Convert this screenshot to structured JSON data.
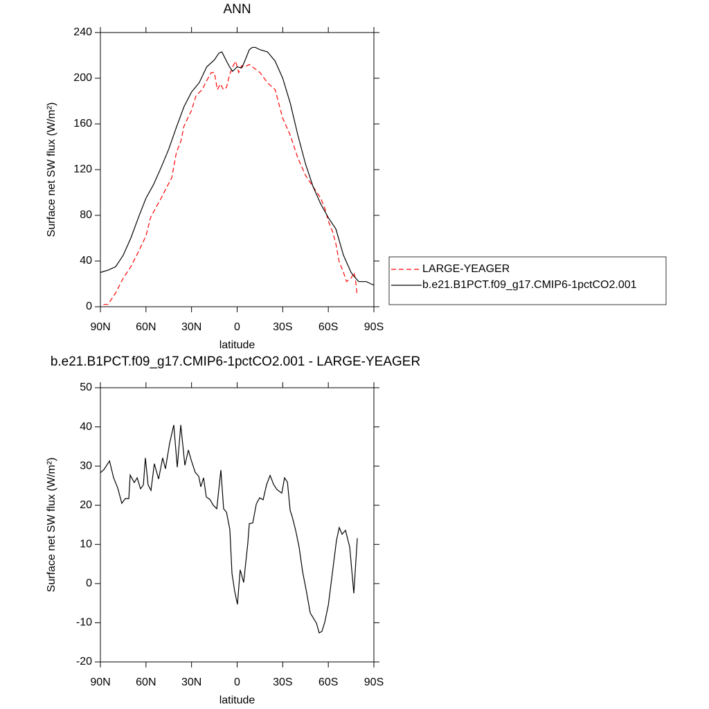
{
  "chart_data": [
    {
      "type": "line",
      "title": "ANN",
      "xlabel": "latitude",
      "ylabel": "Surface net SW flux (W/m²)",
      "xlim": [
        90,
        -90
      ],
      "ylim": [
        0,
        240
      ],
      "xticks": [
        {
          "value": 90,
          "label": "90N"
        },
        {
          "value": 60,
          "label": "60N"
        },
        {
          "value": 30,
          "label": "30N"
        },
        0,
        {
          "value": -30,
          "label": "30S"
        },
        {
          "value": -60,
          "label": "60S"
        },
        {
          "value": -90,
          "label": "90S"
        }
      ],
      "yticks": [
        0,
        40,
        80,
        120,
        160,
        200,
        240
      ],
      "legend": "right",
      "series": [
        {
          "name": "LARGE-YEAGER",
          "color": "#ff0000",
          "dash": true,
          "x": [
            88,
            85,
            80,
            75,
            70,
            65,
            60,
            57,
            53,
            50,
            47,
            43,
            40,
            37,
            35,
            30,
            27,
            23,
            20,
            17,
            15,
            13,
            11,
            9,
            7,
            5,
            3,
            1,
            -1,
            -3,
            -5,
            -8,
            -10,
            -13,
            -15,
            -20,
            -25,
            -27,
            -30,
            -35,
            -40,
            -45,
            -50,
            -55,
            -58,
            -60,
            -63,
            -65,
            -67,
            -70,
            -72,
            -75,
            -77,
            -78,
            -79
          ],
          "values": [
            2,
            2,
            12,
            25,
            35,
            48,
            62,
            78,
            88,
            95,
            103,
            113,
            135,
            145,
            158,
            172,
            185,
            190,
            198,
            205,
            205,
            190,
            195,
            190,
            192,
            203,
            210,
            215,
            205,
            211,
            210,
            212,
            210,
            207,
            205,
            196,
            190,
            180,
            165,
            150,
            130,
            115,
            105,
            95,
            85,
            75,
            65,
            55,
            40,
            30,
            22,
            25,
            30,
            22,
            10
          ]
        },
        {
          "name": "b.e21.B1PCT.f09_g17.CMIP6-1pctCO2.001",
          "color": "#000000",
          "dash": false,
          "x": [
            90,
            85,
            80,
            75,
            70,
            65,
            60,
            55,
            50,
            45,
            40,
            35,
            30,
            25,
            20,
            15,
            12,
            10,
            7,
            5,
            3,
            0,
            -3,
            -5,
            -8,
            -10,
            -12,
            -15,
            -20,
            -25,
            -30,
            -35,
            -40,
            -45,
            -50,
            -55,
            -60,
            -65,
            -70,
            -75,
            -78,
            -80,
            -85,
            -88,
            -90
          ],
          "values": [
            30,
            32,
            35,
            45,
            60,
            78,
            95,
            107,
            122,
            138,
            157,
            175,
            188,
            196,
            210,
            216,
            222,
            223,
            215,
            210,
            206,
            210,
            209,
            215,
            225,
            227,
            227,
            225,
            223,
            215,
            200,
            178,
            150,
            125,
            105,
            90,
            78,
            68,
            45,
            30,
            25,
            22,
            22,
            20,
            19
          ]
        }
      ]
    },
    {
      "type": "line",
      "title": "b.e21.B1PCT.f09_g17.CMIP6-1pctCO2.001 - LARGE-YEAGER",
      "xlabel": "latitude",
      "ylabel": "Surface net SW flux (W/m²)",
      "xlim": [
        90,
        -90
      ],
      "ylim": [
        -20,
        50
      ],
      "xticks": [
        {
          "value": 90,
          "label": "90N"
        },
        {
          "value": 60,
          "label": "60N"
        },
        {
          "value": 30,
          "label": "30N"
        },
        0,
        {
          "value": -30,
          "label": "30S"
        },
        {
          "value": -60,
          "label": "60S"
        },
        {
          "value": -90,
          "label": "90S"
        }
      ],
      "yticks": [
        -20,
        -10,
        0,
        10,
        20,
        30,
        40,
        50
      ],
      "color": "#000000",
      "x": [
        90,
        87.7,
        84,
        81.3,
        78.6,
        75.9,
        73.6,
        71.3,
        70.4,
        67.7,
        65.8,
        63.6,
        61.7,
        60.4,
        58.6,
        56.7,
        54.5,
        51.7,
        49,
        47.2,
        44.4,
        41.7,
        39.4,
        37.1,
        34.4,
        32.1,
        30.3,
        27.6,
        25.3,
        23.9,
        22.1,
        20.3,
        18,
        15.7,
        13.4,
        10.7,
        8.9,
        7,
        4.8,
        3.4,
        1.6,
        -0.2,
        -2,
        -4.3,
        -7,
        -8,
        -10.3,
        -12.6,
        -14.8,
        -17.1,
        -19.4,
        -21.7,
        -24,
        -26.2,
        -29.4,
        -31.2,
        -33.1,
        -34.9,
        -36.3,
        -38.5,
        -40.8,
        -43.1,
        -45.4,
        -48.1,
        -50,
        -52.2,
        -54,
        -55.8,
        -57.7,
        -60,
        -62.2,
        -65.4,
        -67.2,
        -69.1,
        -71.3,
        -74.1,
        -76.8,
        -79.1
      ],
      "values": [
        28.3,
        29.1,
        31.3,
        27,
        24.4,
        20.5,
        21.7,
        21.7,
        27.7,
        25.8,
        27,
        24.2,
        25.2,
        32.1,
        25.2,
        23.8,
        30.6,
        26.7,
        32.1,
        29.3,
        35.9,
        40.5,
        29.7,
        40.5,
        30.2,
        34.1,
        31.6,
        28.4,
        27.4,
        24.7,
        27,
        22.1,
        21.5,
        20,
        19.1,
        29,
        19.1,
        18.2,
        13.8,
        2.6,
        -2,
        -5.3,
        3.5,
        0.3,
        10.2,
        15.3,
        15.5,
        20.3,
        21.9,
        21.4,
        25.3,
        27.6,
        25.3,
        24,
        23.1,
        27,
        25.9,
        18.7,
        17,
        13.6,
        9.3,
        3,
        -1.6,
        -7.5,
        -8.7,
        -10.1,
        -12.6,
        -12.2,
        -9.8,
        -5.5,
        1.2,
        11.1,
        14.3,
        12.6,
        13.6,
        9.3,
        -2.5,
        11.6
      ]
    }
  ]
}
